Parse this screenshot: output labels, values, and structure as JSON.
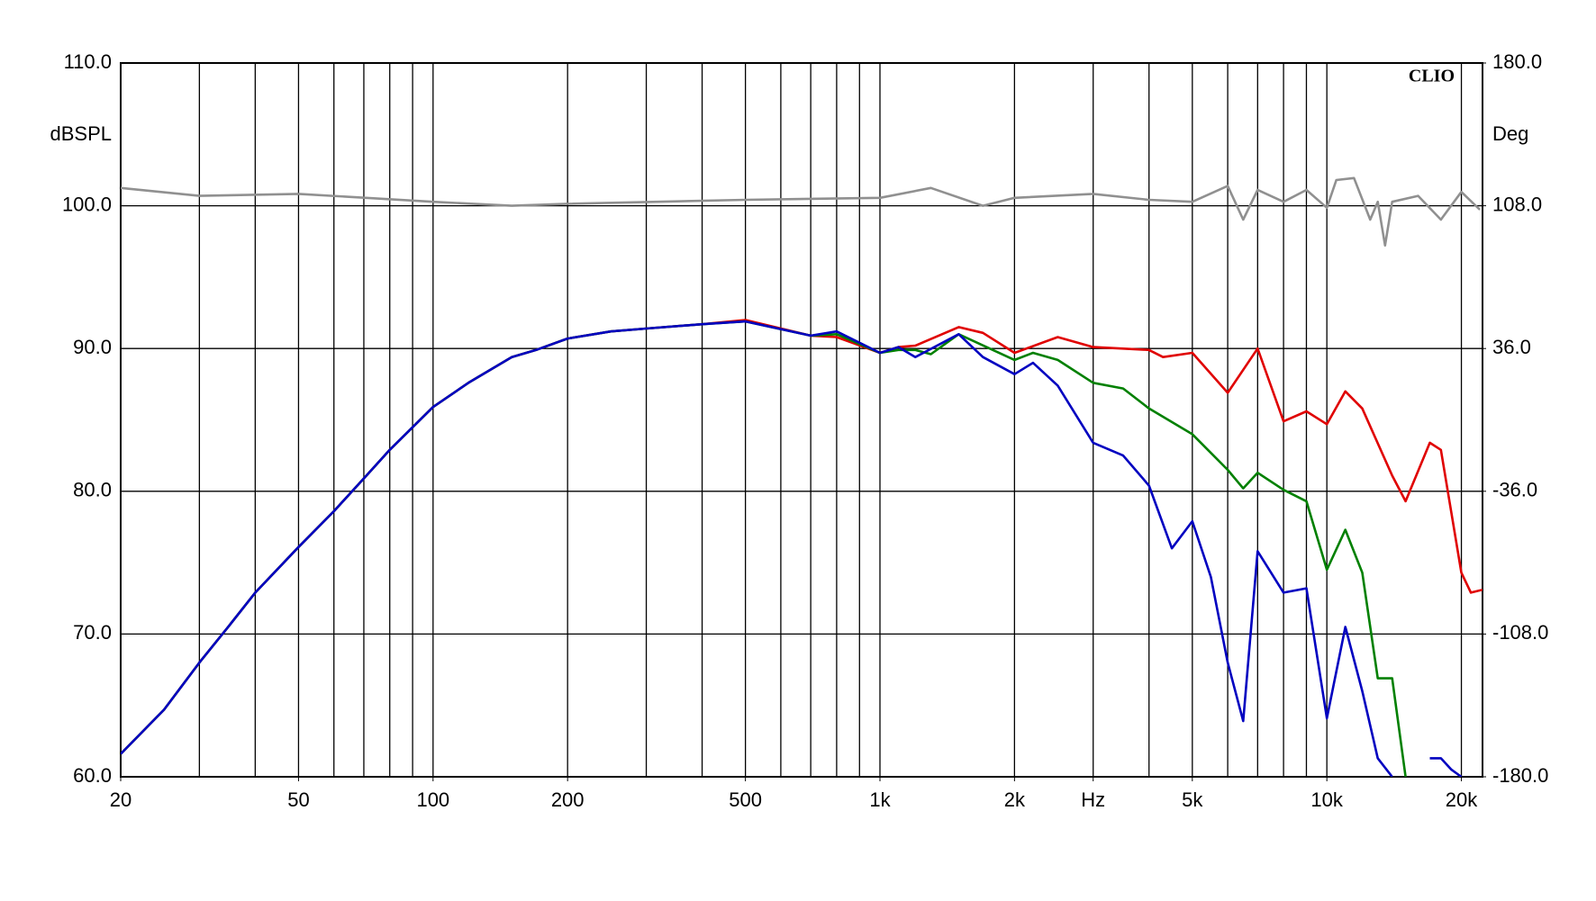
{
  "chart_data": {
    "type": "line",
    "watermark": "CLIO",
    "y_label": "dBSPL",
    "y2_label": "Deg",
    "log_x": true,
    "xlim": [
      20,
      22300
    ],
    "xticks": [
      20,
      50,
      100,
      200,
      500,
      {
        "value": 1000,
        "label": "1k"
      },
      {
        "value": 2000,
        "label": "2k"
      },
      {
        "value": 3000,
        "label": "Hz"
      },
      {
        "value": 5000,
        "label": "5k"
      },
      {
        "value": 10000,
        "label": "10k"
      },
      {
        "value": 20000,
        "label": "20k"
      }
    ],
    "xgrid": [
      30,
      40,
      50,
      60,
      70,
      80,
      90,
      100,
      200,
      300,
      400,
      500,
      600,
      700,
      800,
      900,
      1000,
      2000,
      3000,
      4000,
      5000,
      6000,
      7000,
      8000,
      9000,
      10000,
      20000
    ],
    "ylim": [
      60,
      110
    ],
    "yticks": [
      {
        "value": 60,
        "label": "60.0"
      },
      {
        "value": 70,
        "label": "70.0"
      },
      {
        "value": 80,
        "label": "80.0"
      },
      {
        "value": 90,
        "label": "90.0"
      },
      {
        "value": 100,
        "label": "100.0"
      },
      {
        "value": 110,
        "label": "110.0"
      }
    ],
    "y2lim": [
      -180,
      180
    ],
    "y2ticks": [
      {
        "value": -180,
        "label": "-180.0"
      },
      {
        "value": -108,
        "label": "-108.0"
      },
      {
        "value": -36,
        "label": "-36.0"
      },
      {
        "value": 36,
        "label": "36.0"
      },
      {
        "value": 108,
        "label": "108.0"
      },
      {
        "value": 180,
        "label": "180.0"
      }
    ],
    "grid": true,
    "series": [
      {
        "color": "#909090",
        "axis": "y2",
        "x": [
          20,
          30,
          50,
          100,
          150,
          200,
          500,
          1000,
          1300,
          1700,
          2000,
          3000,
          4000,
          5000,
          6000,
          6500,
          7000,
          8000,
          9000,
          10000,
          10500,
          11500,
          12500,
          13000,
          13500,
          14000,
          16000,
          18000,
          20000,
          22000
        ],
        "values": [
          117,
          113,
          114,
          110,
          108,
          109,
          111,
          112,
          117,
          108,
          112,
          114,
          111,
          110,
          118,
          101,
          116,
          110,
          116,
          107,
          121,
          122,
          101,
          110,
          88,
          110,
          113,
          101,
          115,
          106
        ]
      },
      {
        "color": "#e00000",
        "x": [
          20,
          25,
          30,
          35,
          40,
          50,
          60,
          70,
          80,
          100,
          120,
          150,
          170,
          200,
          250,
          300,
          400,
          500,
          700,
          800,
          1000,
          1100,
          1200,
          1500,
          1700,
          2000,
          2500,
          3000,
          4000,
          4300,
          5000,
          6000,
          7000,
          8000,
          9000,
          10000,
          11000,
          12000,
          14000,
          15000,
          17000,
          18000,
          20000,
          21000,
          22300
        ],
        "values": [
          61.6,
          64.7,
          68.0,
          70.6,
          72.9,
          76.1,
          78.6,
          80.9,
          82.9,
          85.9,
          87.6,
          89.4,
          89.9,
          90.7,
          91.2,
          91.4,
          91.7,
          92.0,
          90.9,
          90.8,
          89.7,
          90.1,
          90.2,
          91.5,
          91.1,
          89.7,
          90.8,
          90.1,
          89.9,
          89.4,
          89.7,
          86.9,
          90.0,
          84.9,
          85.6,
          84.7,
          87.0,
          85.8,
          81.1,
          79.3,
          83.4,
          82.9,
          74.3,
          72.9,
          73.1
        ]
      },
      {
        "color": "#008000",
        "x": [
          20,
          25,
          30,
          35,
          40,
          50,
          60,
          70,
          80,
          100,
          120,
          150,
          170,
          200,
          250,
          300,
          400,
          500,
          700,
          800,
          1000,
          1100,
          1200,
          1300,
          1500,
          2000,
          2200,
          2500,
          3000,
          3500,
          4000,
          5000,
          6000,
          6500,
          7000,
          8000,
          9000,
          10000,
          11000,
          12000,
          13000,
          14000,
          15000
        ],
        "values": [
          61.6,
          64.7,
          68.0,
          70.6,
          72.9,
          76.1,
          78.6,
          80.9,
          82.9,
          85.9,
          87.6,
          89.4,
          89.9,
          90.7,
          91.2,
          91.4,
          91.7,
          91.9,
          90.9,
          91.0,
          89.7,
          89.9,
          89.9,
          89.6,
          91.0,
          89.2,
          89.7,
          89.2,
          87.6,
          87.2,
          85.8,
          84.0,
          81.5,
          80.2,
          81.3,
          80.1,
          79.3,
          74.5,
          77.3,
          74.3,
          66.9,
          66.9,
          60.0
        ]
      },
      {
        "color": "#0000c0",
        "x": [
          20,
          25,
          30,
          35,
          40,
          50,
          60,
          70,
          80,
          100,
          120,
          150,
          170,
          200,
          250,
          300,
          400,
          500,
          700,
          800,
          1000,
          1100,
          1200,
          1500,
          1700,
          2000,
          2200,
          2500,
          3000,
          3500,
          4000,
          4500,
          5000,
          5500,
          6000,
          6500,
          7000,
          8000,
          9000,
          10000,
          11000,
          12000,
          13000,
          14000,
          15000,
          17000,
          18000,
          19000,
          20000
        ],
        "values": [
          61.6,
          64.7,
          68.0,
          70.6,
          72.9,
          76.1,
          78.6,
          80.9,
          82.9,
          85.9,
          87.6,
          89.4,
          89.9,
          90.7,
          91.2,
          91.4,
          91.7,
          91.9,
          90.9,
          91.2,
          89.7,
          90.1,
          89.4,
          91.0,
          89.4,
          88.2,
          89.0,
          87.4,
          83.4,
          82.5,
          80.4,
          76.0,
          77.9,
          74.0,
          68.0,
          63.9,
          75.8,
          72.9,
          73.2,
          64.1,
          70.5,
          66.0,
          61.3,
          60.0,
          null,
          61.3,
          61.3,
          60.5,
          60.0
        ]
      }
    ]
  }
}
